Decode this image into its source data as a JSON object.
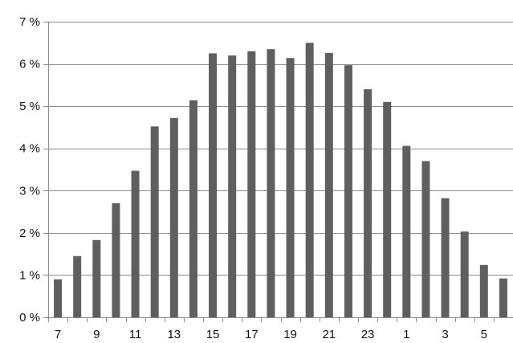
{
  "chart_data": {
    "type": "bar",
    "categories": [
      "7",
      "8",
      "9",
      "10",
      "11",
      "12",
      "13",
      "14",
      "15",
      "16",
      "17",
      "18",
      "19",
      "20",
      "21",
      "22",
      "23",
      "0",
      "1",
      "2",
      "3",
      "4",
      "5",
      "6"
    ],
    "x_tick_labels": [
      "7",
      "9",
      "11",
      "13",
      "15",
      "17",
      "19",
      "21",
      "23",
      "1",
      "3",
      "5"
    ],
    "values": [
      0.9,
      1.45,
      1.83,
      2.7,
      3.47,
      4.52,
      4.72,
      5.14,
      6.25,
      6.2,
      6.3,
      6.35,
      6.14,
      6.5,
      6.26,
      5.97,
      5.4,
      5.1,
      4.06,
      3.7,
      2.82,
      2.03,
      1.24,
      0.92
    ],
    "ylim": [
      0,
      7
    ],
    "y_ticks": [
      0,
      1,
      2,
      3,
      4,
      5,
      6,
      7
    ],
    "y_tick_labels": [
      "0 %",
      "1 %",
      "2 %",
      "3 %",
      "4 %",
      "5 %",
      "6 %",
      "7 %"
    ],
    "title": "",
    "xlabel": "",
    "ylabel": "",
    "grid": true,
    "legend": "none",
    "colors": {
      "bar": "#5f5f5f",
      "grid": "#8c8c8c",
      "axis": "#8c8c8c",
      "text": "#111111"
    }
  }
}
